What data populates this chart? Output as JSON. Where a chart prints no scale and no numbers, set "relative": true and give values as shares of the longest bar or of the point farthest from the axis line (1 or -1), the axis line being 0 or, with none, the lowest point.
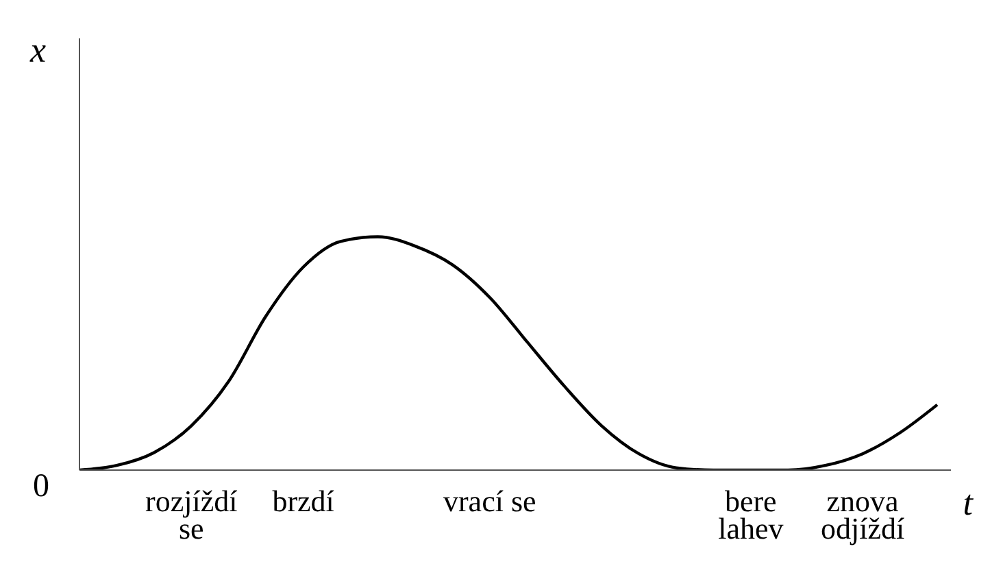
{
  "chart_data": {
    "type": "line",
    "relative": true,
    "xlabel": "t",
    "ylabel": "x",
    "annotations": [
      "0"
    ],
    "categories": [
      null,
      null,
      null,
      "rozjíždí\nse",
      null,
      null,
      "brzdí",
      null,
      null,
      null,
      null,
      "vrací se",
      null,
      null,
      null,
      null,
      null,
      null,
      "bere\nlahev",
      null,
      null,
      "znova\nodjíždí",
      null,
      null
    ],
    "series": [
      {
        "color": "#000000",
        "values": [
          0,
          0.02,
          0.075,
          0.19,
          0.38,
          0.66,
          0.87,
          0.98,
          1,
          0.96,
          0.88,
          0.74,
          0.55,
          0.36,
          0.19,
          0.07,
          0.01,
          0,
          0,
          0,
          0.02,
          0.07,
          0.16,
          0.28
        ]
      }
    ],
    "grid": false,
    "legend": false,
    "marker": "none",
    "line_style": "solid"
  }
}
